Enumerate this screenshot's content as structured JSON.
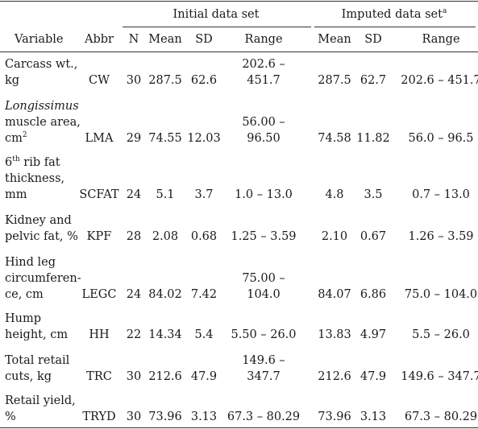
{
  "header": {
    "group_initial": "Initial data set",
    "group_imputed": "Imputed data set",
    "group_imputed_mark": "a",
    "col_variable": "Variable",
    "col_abbr": "Abbr",
    "col_n": "N",
    "col_mean": "Mean",
    "col_sd": "SD",
    "col_range": "Range",
    "col_mean2": "Mean",
    "col_sd2": "SD",
    "col_range2": "Range"
  },
  "rows": [
    {
      "var1": "Carcass wt.,",
      "var2": "kg",
      "abbr": "CW",
      "n": "30",
      "mean": "287.5",
      "sd": "62.6",
      "range1": "202.6 –",
      "range2": "451.7",
      "imean": "287.5",
      "isd": "62.7",
      "irange": "202.6 – 451.7"
    },
    {
      "var1": "Longissimus",
      "var2": "muscle area,",
      "var3": "cm",
      "var3_sup": "2",
      "abbr": "LMA",
      "n": "29",
      "mean": "74.55",
      "sd": "12.03",
      "range1": "56.00 –",
      "range2": "96.50",
      "imean": "74.58",
      "isd": "11.82",
      "irange": "56.0 – 96.5"
    },
    {
      "var1": "6",
      "var1_sup": "th",
      "var1_rest": " rib fat",
      "var2": "thickness,",
      "var3": "mm",
      "abbr": "SCFAT",
      "n": "24",
      "mean": "5.1",
      "sd": "3.7",
      "range": "1.0 – 13.0",
      "imean": "4.8",
      "isd": "3.5",
      "irange": "0.7 – 13.0"
    },
    {
      "var1": "Kidney and",
      "var2": "pelvic fat, %",
      "abbr": "KPF",
      "n": "28",
      "mean": "2.08",
      "sd": "0.68",
      "range": "1.25 – 3.59",
      "imean": "2.10",
      "isd": "0.67",
      "irange": "1.26 – 3.59"
    },
    {
      "var1": "Hind leg",
      "var2": "circumferen-",
      "var3": "ce, cm",
      "abbr": "LEGC",
      "n": "24",
      "mean": "84.02",
      "sd": "7.42",
      "range1": "75.00 –",
      "range2": "104.0",
      "imean": "84.07",
      "isd": "6.86",
      "irange": "75.0 – 104.0"
    },
    {
      "var1": "Hump",
      "var2": "height, cm",
      "abbr": "HH",
      "n": "22",
      "mean": "14.34",
      "sd": "5.4",
      "range": "5.50 – 26.0",
      "imean": "13.83",
      "isd": "4.97",
      "irange": "5.5 – 26.0"
    },
    {
      "var1": "Total retail",
      "var2": "cuts, kg",
      "abbr": "TRC",
      "n": "30",
      "mean": "212.6",
      "sd": "47.9",
      "range1": "149.6 –",
      "range2": "347.7",
      "imean": "212.6",
      "isd": "47.9",
      "irange": "149.6 – 347.7"
    },
    {
      "var1": "Retail yield,",
      "var2": "%",
      "abbr": "TRYD",
      "n": "30",
      "mean": "73.96",
      "sd": "3.13",
      "range": "67.3 – 80.29",
      "imean": "73.96",
      "isd": "3.13",
      "irange": "67.3 – 80.29"
    }
  ]
}
